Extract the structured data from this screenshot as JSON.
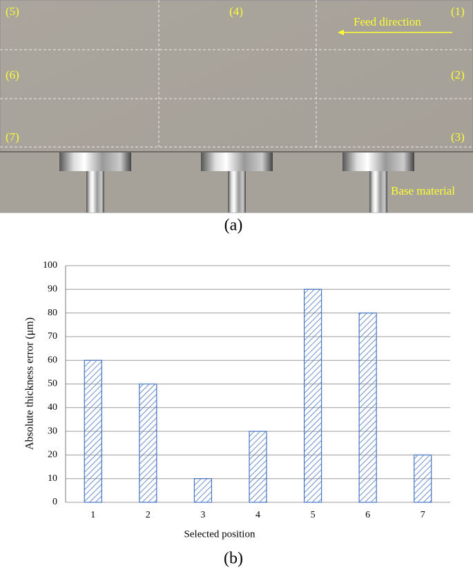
{
  "figure_a": {
    "positions": [
      "(1)",
      "(2)",
      "(3)",
      "(4)",
      "(5)",
      "(6)",
      "(7)"
    ],
    "feed_direction": "Feed direction",
    "base_material": "Base material",
    "caption": "(a)"
  },
  "chart_data": {
    "type": "bar",
    "categories": [
      "1",
      "2",
      "3",
      "4",
      "5",
      "6",
      "7"
    ],
    "values": [
      60,
      50,
      10,
      30,
      90,
      80,
      20
    ],
    "color": "#4472c4",
    "ylim": [
      0,
      100
    ],
    "yticks": [
      0,
      10,
      20,
      30,
      40,
      50,
      60,
      70,
      80,
      90,
      100
    ],
    "grid": true,
    "xlabel": "Selected position",
    "ylabel": "Absolute thickness error (μm)",
    "caption": "(b)"
  }
}
